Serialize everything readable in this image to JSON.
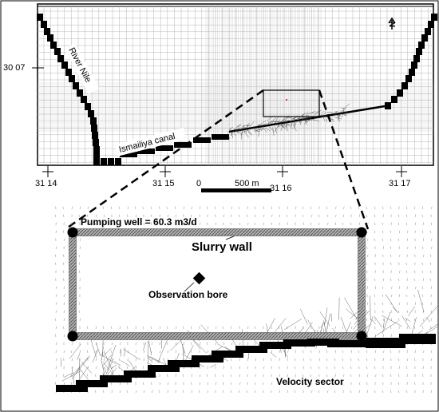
{
  "map": {
    "north_label": "N",
    "lat_label": "30 07",
    "lon_labels": [
      "31 14",
      "31 15",
      "31 16",
      "31 17"
    ],
    "river_label": "River Nile",
    "canal_label": "Ismailiya canal",
    "scale_start": "0",
    "scale_end": "500 m"
  },
  "detail": {
    "pumping_well_label": "Pumping well = 60.3 m3/d",
    "slurry_wall_label": "Slurry wall",
    "observation_bore_label": "Observation bore",
    "velocity_sector_label": "Velocity sector"
  },
  "colors": {
    "wall_fill": "#9a9a9a",
    "grid": "#b5b5b5",
    "dense_grid": "#c8c8c8",
    "ink": "#000000",
    "marker": "#e03030"
  }
}
